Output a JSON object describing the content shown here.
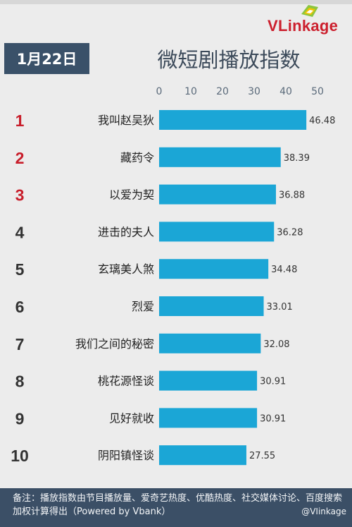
{
  "header": {
    "date": "1月22日",
    "brand": "VLinkage",
    "brand_colors": {
      "v": "#cc1f2d",
      "mark_green": "#8dc63f",
      "mark_gold": "#f3c300"
    }
  },
  "footer": {
    "note": "备注：播放指数由节目播放量、爱奇艺热度、优酷热度、社交媒体讨论、百度搜索加权计算得出（Powered by Vbank）",
    "credit": "@VIinkage"
  },
  "colors": {
    "bar": "#1ba6d6",
    "rank_top": "#c81e2b",
    "rank_other": "#333333",
    "axis": "#5a6a7a",
    "badge": "#3a5169"
  },
  "chart_data": {
    "type": "bar",
    "orientation": "horizontal",
    "title": "微短剧播放指数",
    "xlim": [
      0,
      50
    ],
    "x_ticks": [
      "0",
      "10",
      "20",
      "30",
      "40",
      "50"
    ],
    "grid": false,
    "ranks": [
      "1",
      "2",
      "3",
      "4",
      "5",
      "6",
      "7",
      "8",
      "9",
      "10"
    ],
    "categories": [
      "我叫赵吴狄",
      "藏药令",
      "以爱为契",
      "进击的夫人",
      "玄璃美人煞",
      "烈爱",
      "我们之间的秘密",
      "桃花源怪谈",
      "见好就收",
      "阴阳镇怪谈"
    ],
    "values": [
      46.48,
      38.39,
      36.88,
      36.28,
      34.48,
      33.01,
      32.08,
      30.91,
      30.91,
      27.55
    ],
    "value_labels": [
      "46.48",
      "38.39",
      "36.88",
      "36.28",
      "34.48",
      "33.01",
      "32.08",
      "30.91",
      "30.91",
      "27.55"
    ]
  }
}
